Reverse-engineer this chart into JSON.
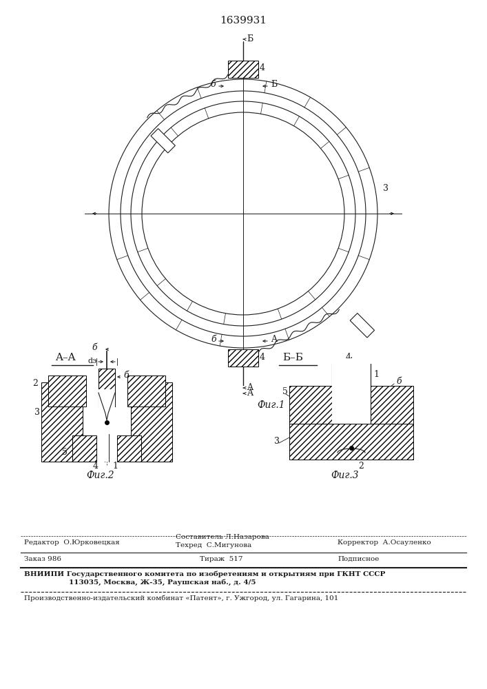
{
  "title": "1639931",
  "line_color": "#1a1a1a",
  "fig1_caption": "Фиг.1",
  "fig2_caption": "Фиг.2",
  "fig3_caption": "Фиг.3",
  "section_aa": "A–A",
  "section_bb": "Б–Б",
  "editor_line": "Редактор  О.Юрковецкая",
  "composer_line1": "Составитель Л.Назарова",
  "techred_line": "Техред  С.Мигунова",
  "corrector_line": "Корректор  А.Осауленко",
  "order_line": "Заказ 986",
  "tirazh_line": "Тираж  517",
  "podpisnoe_line": "Подписное",
  "vniiipi_line1": "ВНИИПИ Государственного комитета по изобретениям и открытиям при ГКНТ СССР",
  "vniiipi_line2": "113035, Москва, Ж-35, Раушская наб., д. 4/5",
  "proizv_line": "Производственно-издательский комбинат «Патент», г. Ужгород, ул. Гагарина, 101"
}
